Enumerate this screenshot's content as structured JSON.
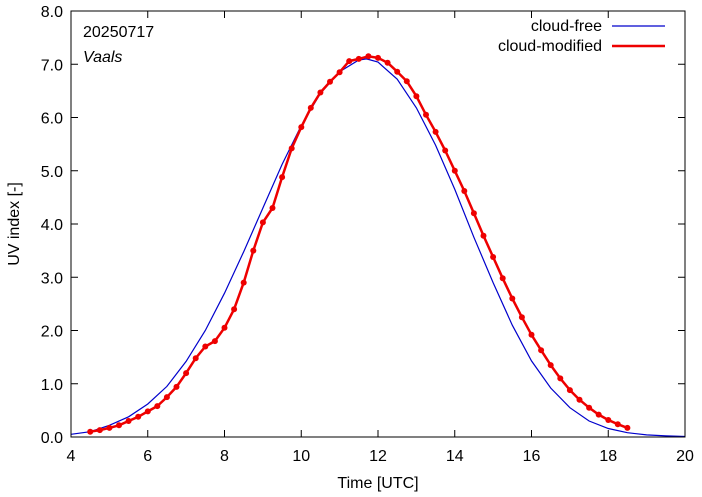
{
  "chart_data": {
    "type": "line",
    "xlabel": "Time  [UTC]",
    "ylabel": "UV index  [-]",
    "xlim": [
      4,
      20
    ],
    "ylim": [
      0,
      8
    ],
    "x_ticks": [
      "4",
      "6",
      "8",
      "10",
      "12",
      "14",
      "16",
      "18",
      "20"
    ],
    "y_ticks": [
      "0.0",
      "1.0",
      "2.0",
      "3.0",
      "4.0",
      "5.0",
      "6.0",
      "7.0",
      "8.0"
    ],
    "annotations": {
      "date": "20250717",
      "location": "Vaals"
    },
    "legend_position": "top-right",
    "grid": false,
    "series": [
      {
        "name": "cloud-free",
        "color": "#0000cc",
        "points": [
          [
            4.0,
            0.05
          ],
          [
            4.5,
            0.1
          ],
          [
            5.0,
            0.22
          ],
          [
            5.5,
            0.38
          ],
          [
            6.0,
            0.62
          ],
          [
            6.5,
            0.95
          ],
          [
            7.0,
            1.42
          ],
          [
            7.5,
            2.0
          ],
          [
            8.0,
            2.7
          ],
          [
            8.5,
            3.48
          ],
          [
            9.0,
            4.3
          ],
          [
            9.5,
            5.12
          ],
          [
            10.0,
            5.85
          ],
          [
            10.5,
            6.45
          ],
          [
            11.0,
            6.86
          ],
          [
            11.5,
            7.08
          ],
          [
            11.7,
            7.1
          ],
          [
            12.0,
            7.04
          ],
          [
            12.5,
            6.72
          ],
          [
            13.0,
            6.18
          ],
          [
            13.5,
            5.48
          ],
          [
            14.0,
            4.65
          ],
          [
            14.5,
            3.75
          ],
          [
            15.0,
            2.9
          ],
          [
            15.5,
            2.1
          ],
          [
            16.0,
            1.43
          ],
          [
            16.5,
            0.92
          ],
          [
            17.0,
            0.55
          ],
          [
            17.5,
            0.3
          ],
          [
            18.0,
            0.16
          ],
          [
            18.5,
            0.08
          ],
          [
            19.0,
            0.04
          ],
          [
            19.5,
            0.02
          ],
          [
            20.0,
            0.01
          ]
        ]
      },
      {
        "name": "cloud-modified",
        "color": "#ee0000",
        "points": [
          [
            4.5,
            0.1
          ],
          [
            4.75,
            0.13
          ],
          [
            5.0,
            0.17
          ],
          [
            5.25,
            0.22
          ],
          [
            5.5,
            0.3
          ],
          [
            5.75,
            0.38
          ],
          [
            6.0,
            0.48
          ],
          [
            6.25,
            0.58
          ],
          [
            6.5,
            0.75
          ],
          [
            6.75,
            0.94
          ],
          [
            7.0,
            1.2
          ],
          [
            7.25,
            1.48
          ],
          [
            7.5,
            1.7
          ],
          [
            7.75,
            1.8
          ],
          [
            8.0,
            2.05
          ],
          [
            8.25,
            2.4
          ],
          [
            8.5,
            2.9
          ],
          [
            8.75,
            3.5
          ],
          [
            9.0,
            4.03
          ],
          [
            9.25,
            4.3
          ],
          [
            9.5,
            4.88
          ],
          [
            9.75,
            5.42
          ],
          [
            10.0,
            5.82
          ],
          [
            10.25,
            6.18
          ],
          [
            10.5,
            6.47
          ],
          [
            10.75,
            6.67
          ],
          [
            11.0,
            6.85
          ],
          [
            11.25,
            7.06
          ],
          [
            11.5,
            7.1
          ],
          [
            11.75,
            7.15
          ],
          [
            12.0,
            7.12
          ],
          [
            12.25,
            7.03
          ],
          [
            12.5,
            6.86
          ],
          [
            12.75,
            6.68
          ],
          [
            13.0,
            6.4
          ],
          [
            13.25,
            6.05
          ],
          [
            13.5,
            5.73
          ],
          [
            13.75,
            5.38
          ],
          [
            14.0,
            5.0
          ],
          [
            14.25,
            4.62
          ],
          [
            14.5,
            4.2
          ],
          [
            14.75,
            3.78
          ],
          [
            15.0,
            3.38
          ],
          [
            15.25,
            2.98
          ],
          [
            15.5,
            2.6
          ],
          [
            15.75,
            2.25
          ],
          [
            16.0,
            1.92
          ],
          [
            16.25,
            1.63
          ],
          [
            16.5,
            1.35
          ],
          [
            16.75,
            1.1
          ],
          [
            17.0,
            0.88
          ],
          [
            17.25,
            0.7
          ],
          [
            17.5,
            0.55
          ],
          [
            17.75,
            0.42
          ],
          [
            18.0,
            0.32
          ],
          [
            18.25,
            0.24
          ],
          [
            18.5,
            0.17
          ]
        ]
      }
    ]
  }
}
